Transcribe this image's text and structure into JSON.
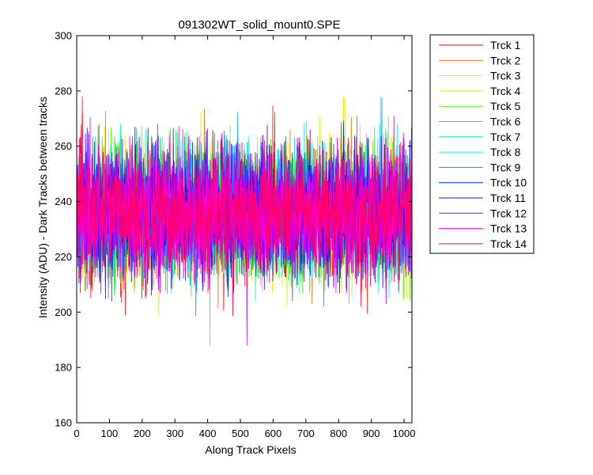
{
  "figure": {
    "background": "#ffffff"
  },
  "chart_data": {
    "type": "line",
    "title": "091302WT_solid_mount0.SPE",
    "xlabel": "Along Track Pixels",
    "ylabel": "Intensity (ADU) - Dark Tracks between tracks",
    "xlim": [
      0,
      1024
    ],
    "ylim": [
      160,
      300
    ],
    "xticks": [
      0,
      100,
      200,
      300,
      400,
      500,
      600,
      700,
      800,
      900,
      1000
    ],
    "yticks": [
      160,
      180,
      200,
      220,
      240,
      260,
      280,
      300
    ],
    "grid": false,
    "legend_position": "outside-right-top",
    "noise_model": {
      "points_per_series": 1024,
      "mean": 236,
      "std": 11,
      "min": 188,
      "max": 290
    },
    "series": [
      {
        "name": "Trck 1",
        "color": "#ff0000"
      },
      {
        "name": "Trck 2",
        "color": "#ff6e00"
      },
      {
        "name": "Trck 3",
        "color": "#ffdc00"
      },
      {
        "name": "Trck 4",
        "color": "#b4ff00"
      },
      {
        "name": "Trck 5",
        "color": "#46ff00"
      },
      {
        "name": "Trck 6",
        "color": "#00ff28"
      },
      {
        "name": "Trck 7",
        "color": "#00ff96"
      },
      {
        "name": "Trck 8",
        "color": "#00ffff"
      },
      {
        "name": "Trck 9",
        "color": "#0096ff"
      },
      {
        "name": "Trck 10",
        "color": "#0028ff"
      },
      {
        "name": "Trck 11",
        "color": "#4600ff"
      },
      {
        "name": "Trck 12",
        "color": "#b400ff"
      },
      {
        "name": "Trck 13",
        "color": "#ff00dc"
      },
      {
        "name": "Trck 14",
        "color": "#ff006e"
      }
    ]
  }
}
